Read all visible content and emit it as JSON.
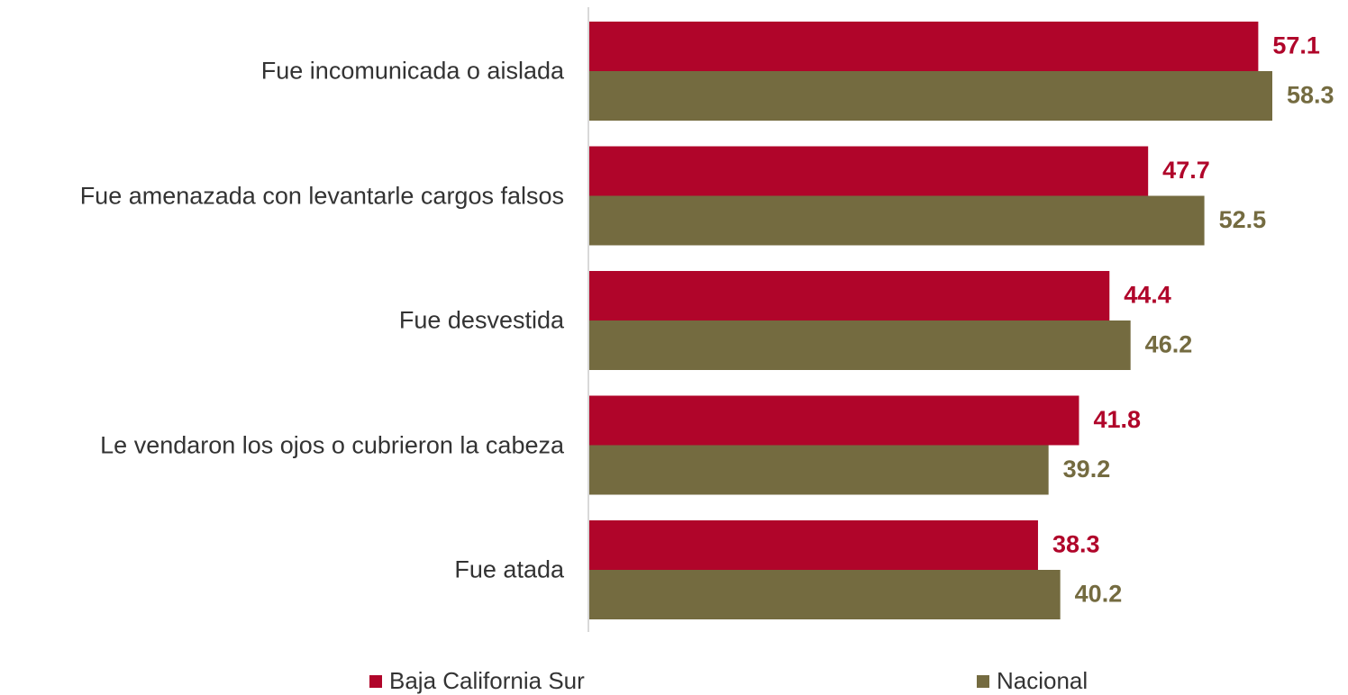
{
  "chart_data": {
    "type": "hbar",
    "categories": [
      "Fue incomunicada o aislada",
      "Fue amenazada con levantarle cargos falsos",
      "Fue desvestida",
      "Le vendaron los ojos o cubrieron la cabeza",
      "Fue atada"
    ],
    "series": [
      {
        "name": "Baja California Sur",
        "color": "#b0052a",
        "values": [
          57.1,
          47.7,
          44.4,
          41.8,
          38.3
        ]
      },
      {
        "name": "Nacional",
        "color": "#746b40",
        "values": [
          58.3,
          52.5,
          46.2,
          39.2,
          40.2
        ]
      }
    ],
    "legend": "bottom"
  }
}
